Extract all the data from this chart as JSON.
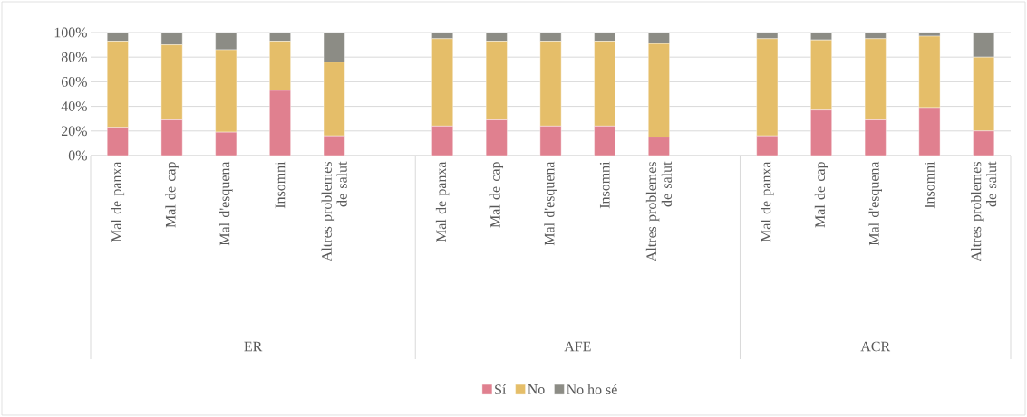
{
  "chart_data": {
    "type": "bar",
    "stacked": true,
    "categories": [
      "Mal de panxa",
      "Mal de cap",
      "Mal d'esquena",
      "Insomni",
      "Altres problemes de salut",
      null,
      "Mal de panxa",
      "Mal de cap",
      "Mal d'esquena",
      "Insomni",
      "Altres problemes de salut",
      null,
      "Mal de panxa",
      "Mal de cap",
      "Mal d'esquena",
      "Insomni",
      "Altres problemes de salut"
    ],
    "series": [
      {
        "name": "Sí",
        "color": "#e0808f",
        "values": [
          23,
          29,
          19,
          53,
          16,
          null,
          24,
          29,
          24,
          24,
          15,
          null,
          16,
          37,
          29,
          39,
          20
        ]
      },
      {
        "name": "No",
        "color": "#e5be69",
        "values": [
          70,
          61,
          67,
          40,
          60,
          null,
          71,
          64,
          69,
          69,
          76,
          null,
          79,
          57,
          66,
          58,
          60
        ]
      },
      {
        "name": "No ho sé",
        "color": "#8c8c85",
        "values": [
          7,
          10,
          14,
          7,
          24,
          null,
          5,
          7,
          7,
          7,
          9,
          null,
          5,
          6,
          5,
          3,
          20
        ]
      }
    ],
    "ylim": [
      0,
      100
    ],
    "yticks": [
      {
        "value": 0,
        "label": "0%"
      },
      {
        "value": 20,
        "label": "20%"
      },
      {
        "value": 40,
        "label": "40%"
      },
      {
        "value": 60,
        "label": "60%"
      },
      {
        "value": 80,
        "label": "80%"
      },
      {
        "value": 100,
        "label": "100%"
      }
    ],
    "grid": "y",
    "legend": "bottom",
    "annotations": [
      "ER",
      "AFE",
      "ACR"
    ]
  }
}
